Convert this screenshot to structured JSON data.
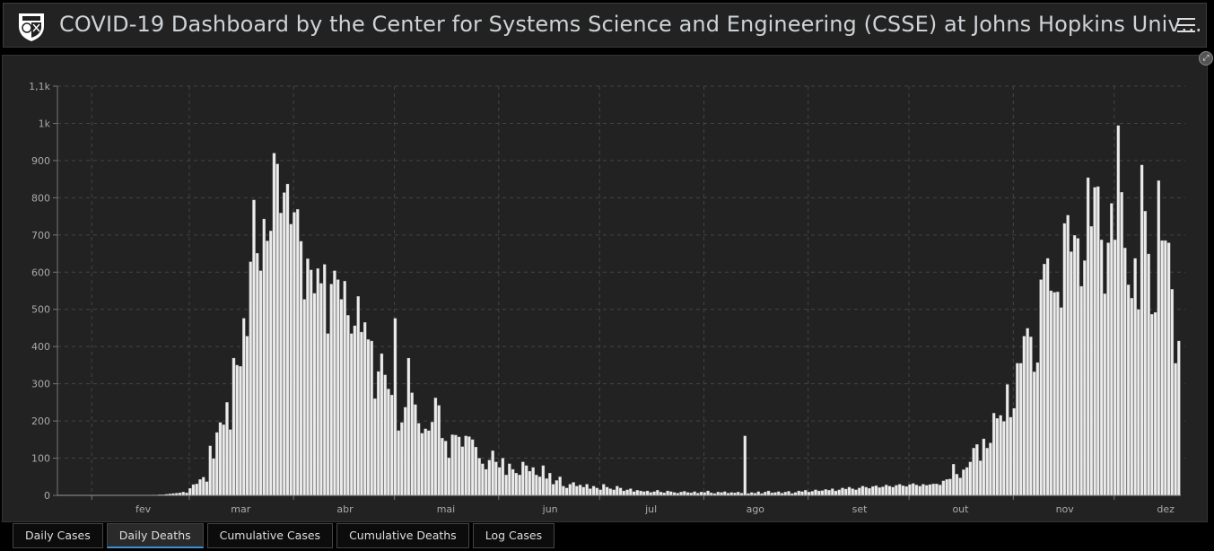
{
  "header": {
    "title": "COVID-19 Dashboard by the Center for Systems Science and Engineering (CSSE) at Johns Hopkins Univ…",
    "logo_icon": "jhu-shield-logo",
    "menu_icon": "hamburger-menu-icon"
  },
  "expand_icon": "expand-icon",
  "tabs": [
    {
      "label": "Daily Cases",
      "active": false
    },
    {
      "label": "Daily Deaths",
      "active": true
    },
    {
      "label": "Cumulative Cases",
      "active": false
    },
    {
      "label": "Cumulative Deaths",
      "active": false
    },
    {
      "label": "Log Cases",
      "active": false
    }
  ],
  "colors": {
    "bar": "#ebebeb",
    "background": "#222222",
    "grid": "#444444",
    "active_tab": "#3a8fd6"
  },
  "chart_data": {
    "type": "bar",
    "title": "",
    "xlabel": "",
    "ylabel": "",
    "ylim": [
      0,
      1100
    ],
    "grid": true,
    "y_ticks": [
      {
        "value": 0,
        "label": "0"
      },
      {
        "value": 100,
        "label": "100"
      },
      {
        "value": 200,
        "label": "200"
      },
      {
        "value": 300,
        "label": "300"
      },
      {
        "value": 400,
        "label": "400"
      },
      {
        "value": 500,
        "label": "500"
      },
      {
        "value": 600,
        "label": "600"
      },
      {
        "value": 700,
        "label": "700"
      },
      {
        "value": 800,
        "label": "800"
      },
      {
        "value": 900,
        "label": "900"
      },
      {
        "value": 1000,
        "label": "1k"
      },
      {
        "value": 1100,
        "label": "1,1k"
      }
    ],
    "x_ticks": [
      {
        "index": 25,
        "label": "fev"
      },
      {
        "index": 54,
        "label": "mar"
      },
      {
        "index": 85,
        "label": "abr"
      },
      {
        "index": 115,
        "label": "mai"
      },
      {
        "index": 146,
        "label": "jun"
      },
      {
        "index": 176,
        "label": "jul"
      },
      {
        "index": 207,
        "label": "ago"
      },
      {
        "index": 238,
        "label": "set"
      },
      {
        "index": 268,
        "label": "out"
      },
      {
        "index": 299,
        "label": "nov"
      },
      {
        "index": 329,
        "label": "dez"
      }
    ],
    "series": [
      {
        "name": "Daily Deaths",
        "values": [
          0,
          0,
          0,
          0,
          0,
          0,
          0,
          0,
          0,
          0,
          0,
          0,
          0,
          0,
          0,
          0,
          0,
          0,
          0,
          0,
          0,
          0,
          0,
          0,
          0,
          0,
          0,
          0,
          1,
          1,
          2,
          2,
          3,
          4,
          5,
          6,
          7,
          9,
          7,
          19,
          29,
          31,
          43,
          49,
          37,
          133,
          99,
          169,
          196,
          190,
          250,
          177,
          369,
          350,
          347,
          476,
          428,
          628,
          794,
          651,
          604,
          743,
          684,
          711,
          920,
          891,
          759,
          814,
          837,
          729,
          761,
          769,
          683,
          527,
          636,
          606,
          543,
          610,
          570,
          621,
          435,
          568,
          604,
          580,
          527,
          576,
          484,
          435,
          456,
          535,
          439,
          465,
          419,
          415,
          260,
          333,
          381,
          324,
          286,
          270,
          476,
          174,
          196,
          237,
          369,
          276,
          244,
          194,
          167,
          179,
          174,
          197,
          262,
          242,
          154,
          146,
          101,
          163,
          162,
          157,
          131,
          160,
          158,
          150,
          130,
          100,
          85,
          70,
          95,
          120,
          90,
          75,
          100,
          55,
          85,
          70,
          60,
          55,
          90,
          80,
          65,
          75,
          55,
          50,
          80,
          45,
          60,
          30,
          40,
          50,
          25,
          20,
          30,
          35,
          25,
          28,
          22,
          30,
          18,
          25,
          20,
          15,
          30,
          22,
          18,
          15,
          25,
          20,
          12,
          15,
          18,
          10,
          14,
          12,
          10,
          12,
          8,
          10,
          14,
          9,
          7,
          12,
          10,
          8,
          6,
          9,
          11,
          8,
          7,
          10,
          6,
          9,
          8,
          12,
          7,
          5,
          9,
          8,
          10,
          6,
          8,
          7,
          9,
          6,
          160,
          5,
          8,
          6,
          10,
          5,
          9,
          12,
          7,
          8,
          10,
          6,
          9,
          11,
          5,
          8,
          12,
          10,
          14,
          9,
          11,
          15,
          12,
          13,
          16,
          14,
          18,
          12,
          15,
          20,
          17,
          22,
          18,
          15,
          20,
          25,
          22,
          19,
          24,
          26,
          21,
          23,
          28,
          25,
          22,
          27,
          30,
          26,
          24,
          29,
          32,
          28,
          25,
          30,
          27,
          29,
          31,
          31,
          28,
          39,
          43,
          44,
          84,
          57,
          47,
          69,
          75,
          90,
          127,
          137,
          93,
          152,
          127,
          141,
          221,
          207,
          215,
          199,
          298,
          210,
          234,
          355,
          355,
          428,
          449,
          426,
          332,
          357,
          580,
          622,
          637,
          550,
          546,
          547,
          505,
          731,
          753,
          655,
          699,
          691,
          562,
          631,
          854,
          723,
          828,
          830,
          687,
          542,
          679,
          785,
          687,
          994,
          815,
          665,
          566,
          530,
          637,
          500,
          888,
          764,
          649,
          487,
          492,
          846,
          685,
          685,
          679,
          554,
          355,
          415
        ]
      }
    ]
  }
}
